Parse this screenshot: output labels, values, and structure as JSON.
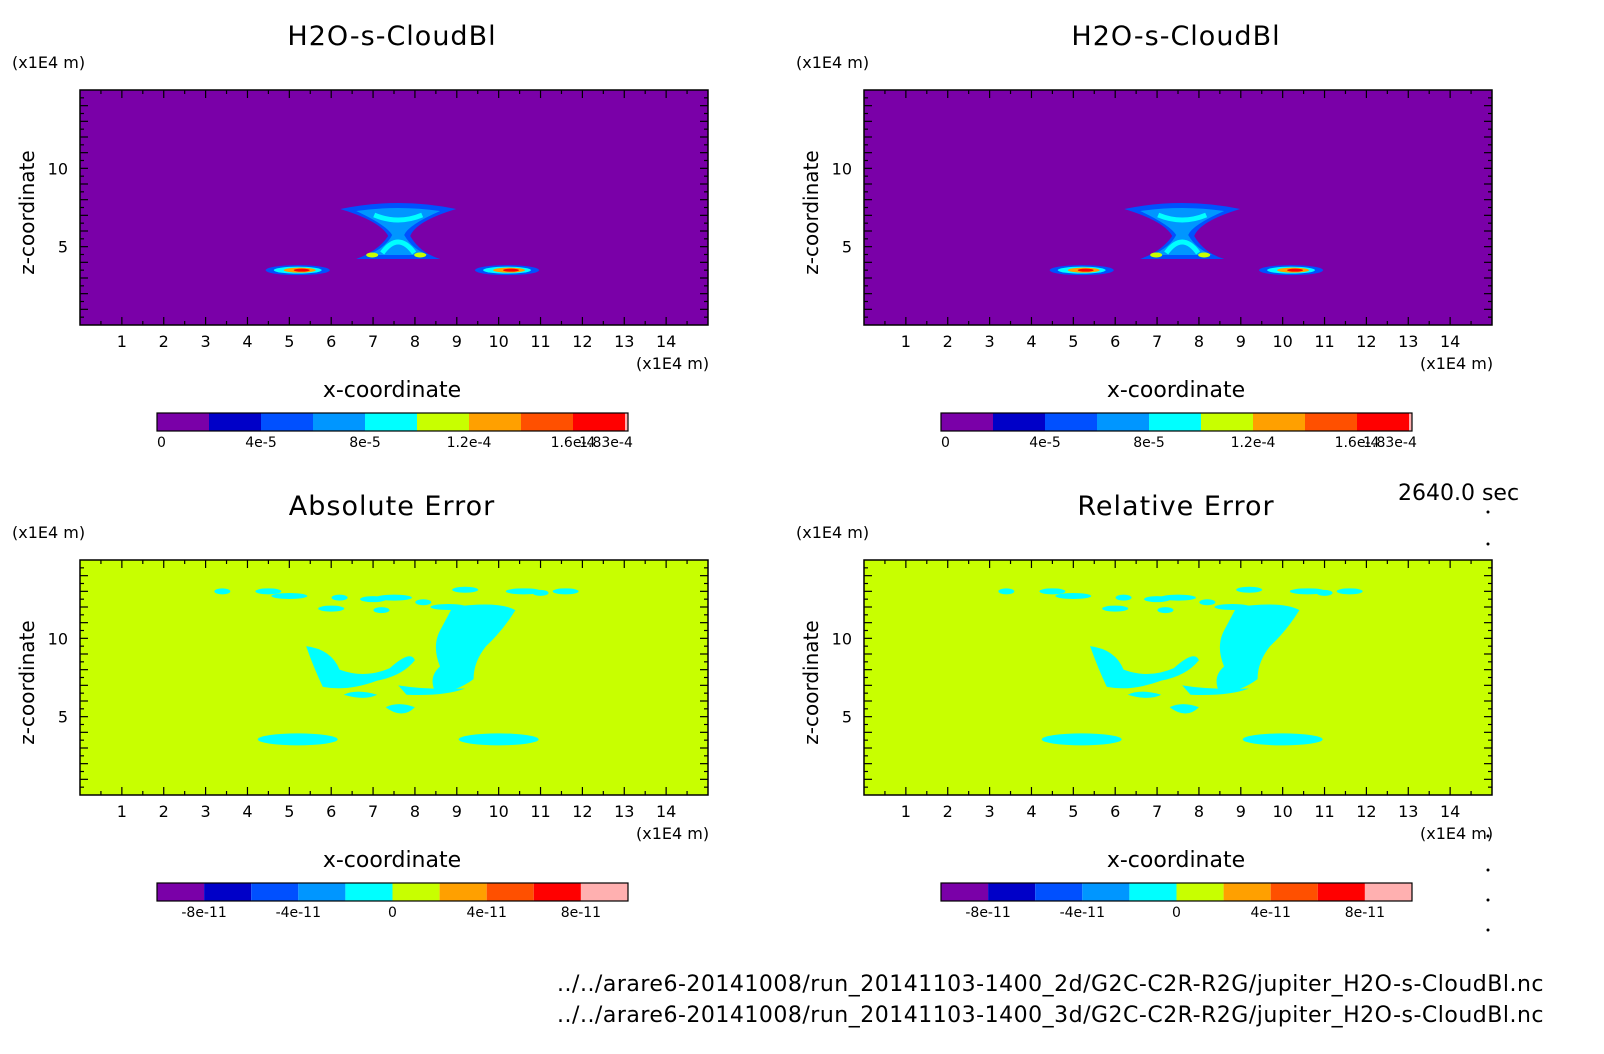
{
  "time_label": "2640.0 sec",
  "footer": {
    "line1": "../../arare6-20141008/run_20141103-1400_2d/G2C-C2R-R2G/jupiter_H2O-s-CloudBl.nc",
    "line2": "../../arare6-20141008/run_20141103-1400_3d/G2C-C2R-R2G/jupiter_H2O-s-CloudBl.nc"
  },
  "colors": {
    "magnitude_palette": [
      "#7a00a8",
      "#0000c8",
      "#0050ff",
      "#0096ff",
      "#00ffff",
      "#c8ff00",
      "#ffa000",
      "#ff5000",
      "#ff0000",
      "#ffb0b0"
    ],
    "error_palette": [
      "#7a00a8",
      "#0000c8",
      "#0050ff",
      "#0096ff",
      "#00ffff",
      "#c8ff00",
      "#ffa000",
      "#ff5000",
      "#ff0000",
      "#ffb0b0"
    ]
  },
  "chart_data": [
    {
      "type": "heatmap",
      "title": "H2O-s-CloudBl",
      "xlabel": "x-coordinate",
      "ylabel": "z-coordinate",
      "x_unit": "(x1E4 m)",
      "y_unit": "(x1E4 m)",
      "xlim": [
        0,
        15
      ],
      "ylim": [
        0,
        15
      ],
      "xticks": [
        "1",
        "2",
        "3",
        "4",
        "5",
        "6",
        "7",
        "8",
        "9",
        "10",
        "11",
        "12",
        "13",
        "14"
      ],
      "yticks": [
        "5",
        "10"
      ],
      "background_level": 0,
      "features": [
        {
          "name": "central-x-cloud",
          "x": 7.6,
          "z": 6.0,
          "max": 0.0001
        },
        {
          "name": "left-layer",
          "x": 5.2,
          "z": 3.5,
          "max": 0.00016
        },
        {
          "name": "right-layer",
          "x": 10.2,
          "z": 3.5,
          "max": 0.00016
        }
      ],
      "colorbar": {
        "levels": 9,
        "labels": [
          "0",
          "4e-5",
          "8e-5",
          "1.2e-4",
          "1.6e-4",
          "1.83e-4"
        ],
        "label_positions": [
          0,
          2,
          4,
          6,
          8,
          9.15
        ],
        "palette": "magnitude_palette"
      }
    },
    {
      "type": "heatmap",
      "title": "H2O-s-CloudBl",
      "xlabel": "x-coordinate",
      "ylabel": "z-coordinate",
      "x_unit": "(x1E4 m)",
      "y_unit": "(x1E4 m)",
      "xlim": [
        0,
        15
      ],
      "ylim": [
        0,
        15
      ],
      "xticks": [
        "1",
        "2",
        "3",
        "4",
        "5",
        "6",
        "7",
        "8",
        "9",
        "10",
        "11",
        "12",
        "13",
        "14"
      ],
      "yticks": [
        "5",
        "10"
      ],
      "background_level": 0,
      "features": [
        {
          "name": "central-x-cloud",
          "x": 7.6,
          "z": 6.0,
          "max": 0.0001
        },
        {
          "name": "left-layer",
          "x": 5.2,
          "z": 3.5,
          "max": 0.00016
        },
        {
          "name": "right-layer",
          "x": 10.2,
          "z": 3.5,
          "max": 0.00016
        }
      ],
      "colorbar": {
        "levels": 9,
        "labels": [
          "0",
          "4e-5",
          "8e-5",
          "1.2e-4",
          "1.6e-4",
          "1.83e-4"
        ],
        "label_positions": [
          0,
          2,
          4,
          6,
          8,
          9.15
        ],
        "palette": "magnitude_palette"
      }
    },
    {
      "type": "heatmap",
      "title": "Absolute Error",
      "xlabel": "x-coordinate",
      "ylabel": "z-coordinate",
      "x_unit": "(x1E4 m)",
      "y_unit": "(x1E4 m)",
      "xlim": [
        0,
        15
      ],
      "ylim": [
        0,
        15
      ],
      "xticks": [
        "1",
        "2",
        "3",
        "4",
        "5",
        "6",
        "7",
        "8",
        "9",
        "10",
        "11",
        "12",
        "13",
        "14"
      ],
      "yticks": [
        "5",
        "10"
      ],
      "background_level": 5,
      "features": [
        {
          "name": "negative-error-region",
          "level": 4
        }
      ],
      "colorbar": {
        "levels": 10,
        "labels": [
          "-8e-11",
          "-4e-11",
          "0",
          "4e-11",
          "8e-11"
        ],
        "label_positions": [
          1,
          3,
          5,
          7,
          9
        ],
        "palette": "error_palette"
      }
    },
    {
      "type": "heatmap",
      "title": "Relative Error",
      "xlabel": "x-coordinate",
      "ylabel": "z-coordinate",
      "x_unit": "(x1E4 m)",
      "y_unit": "(x1E4 m)",
      "xlim": [
        0,
        15
      ],
      "ylim": [
        0,
        15
      ],
      "xticks": [
        "1",
        "2",
        "3",
        "4",
        "5",
        "6",
        "7",
        "8",
        "9",
        "10",
        "11",
        "12",
        "13",
        "14"
      ],
      "yticks": [
        "5",
        "10"
      ],
      "background_level": 5,
      "features": [
        {
          "name": "negative-error-region",
          "level": 4
        }
      ],
      "colorbar": {
        "levels": 10,
        "labels": [
          "-8e-11",
          "-4e-11",
          "0",
          "4e-11",
          "8e-11"
        ],
        "label_positions": [
          1,
          3,
          5,
          7,
          9
        ],
        "palette": "error_palette"
      }
    }
  ]
}
